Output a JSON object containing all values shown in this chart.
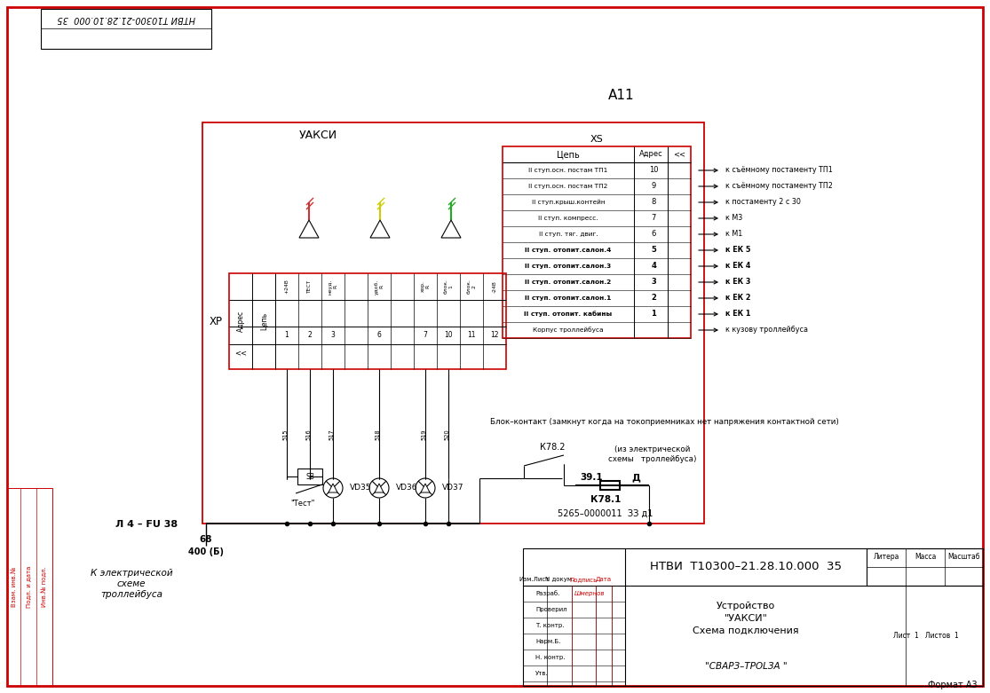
{
  "bg_color": "#ffffff",
  "line_color": "#000000",
  "red_color": "#cc0000",
  "title_rotated": "НТВИ Т10300-21.28.10.000  35",
  "a11": "А11",
  "uaksi": "УАКСИ",
  "xs_label": "XS",
  "xp_label": "ХР",
  "xs_rows": [
    [
      "II ступ.осн. постам ТП1",
      "10"
    ],
    [
      "II ступ.осн. постам ТП2",
      "9"
    ],
    [
      "II ступ.крыш.контейн",
      "8"
    ],
    [
      "II ступ. компресс.",
      "7"
    ],
    [
      "II ступ. тяг. двиг.",
      "6"
    ],
    [
      "II ступ. отопит.салон.4",
      "5"
    ],
    [
      "II ступ. отопит.салон.3",
      "4"
    ],
    [
      "II ступ. отопит.салон.2",
      "3"
    ],
    [
      "II ступ. отопит.салон.1",
      "2"
    ],
    [
      "II ступ. отопит. кабины",
      "1"
    ],
    [
      "Корпус троллейбуса",
      ""
    ]
  ],
  "xs_arrows": [
    [
      "к съёмному постаменту ТП1",
      false
    ],
    [
      "к съёмному постаменту ТП2",
      false
    ],
    [
      "к постаменту 2 с 30",
      false
    ],
    [
      "к М3",
      false
    ],
    [
      "к М1",
      false
    ],
    [
      "к ЕК 5",
      true
    ],
    [
      "к ЕК 4",
      true
    ],
    [
      "к ЕК 3",
      true
    ],
    [
      "к ЕК 2",
      true
    ],
    [
      "к ЕК 1",
      true
    ],
    [
      "к кузову троллейбуса",
      false
    ]
  ],
  "xp_col_labels": [
    "+24В",
    "ТЕСТ",
    "неуд.\nR",
    "",
    "удоб.\nR",
    "",
    "хор.\nR",
    "блок.\n1",
    "блок.\n2",
    "-24В"
  ],
  "xp_pin_nums": [
    "1",
    "2",
    "3",
    "",
    "6",
    "",
    "7",
    "10",
    "11",
    "12"
  ],
  "led_colors": [
    "#cc3333",
    "#cccc00",
    "#22aa22"
  ],
  "diode_names": [
    "VD35",
    "VD36",
    "VD37"
  ],
  "wire_labels": [
    "515",
    "516",
    "517",
    "518",
    "519",
    "520"
  ],
  "fuse_text": "Л 4 – FU 38",
  "fuse_68": "68",
  "fuse_400": "400 (Б)",
  "sb_text": "SB",
  "test_text": "\"Тест\"",
  "block_contact": "Блок–контакт (замкнут когда на токоприемниках нет напряжения контактной сети)",
  "k782": "К78.2",
  "k781": "К78.1",
  "electric_schema": "(из электрической\nсхемы   троллейбуса)",
  "contact_39": "39.1",
  "contact_D": "Д",
  "wire_num": "5265–0000011  ЗЗ д1",
  "к_электрической": "К электрической\nсхеме\nтроллейбуса",
  "bottom_title": "НТВИ  Т10300–21.28.10.000  35",
  "bottom_sub1": "Устройство",
  "bottom_sub2": "\"УАКСИ\"",
  "bottom_sub3": "Схема подключения",
  "bottom_firm": "\"СВАРЗ–ТРОLЗА \"",
  "sheet_text": "Лист  1   Листов  1",
  "litera": "Литера",
  "massa": "Масса",
  "masshtab": "Масштаб",
  "format": "Формат А3",
  "razrab_name": "Шмернов",
  "left_strip_labels": [
    "Взам. инв.№",
    "Подл. и дата",
    "Инв.№ подл."
  ],
  "bottom_stamp_rows": [
    "Изм.Лист",
    "N докум.",
    "Подпись",
    "Дата"
  ],
  "bottom_stamp_names": [
    "Разраб.",
    "Проверил",
    "Т. контр.",
    "Нарм.Б.",
    "Н. контр.",
    "Утв."
  ]
}
